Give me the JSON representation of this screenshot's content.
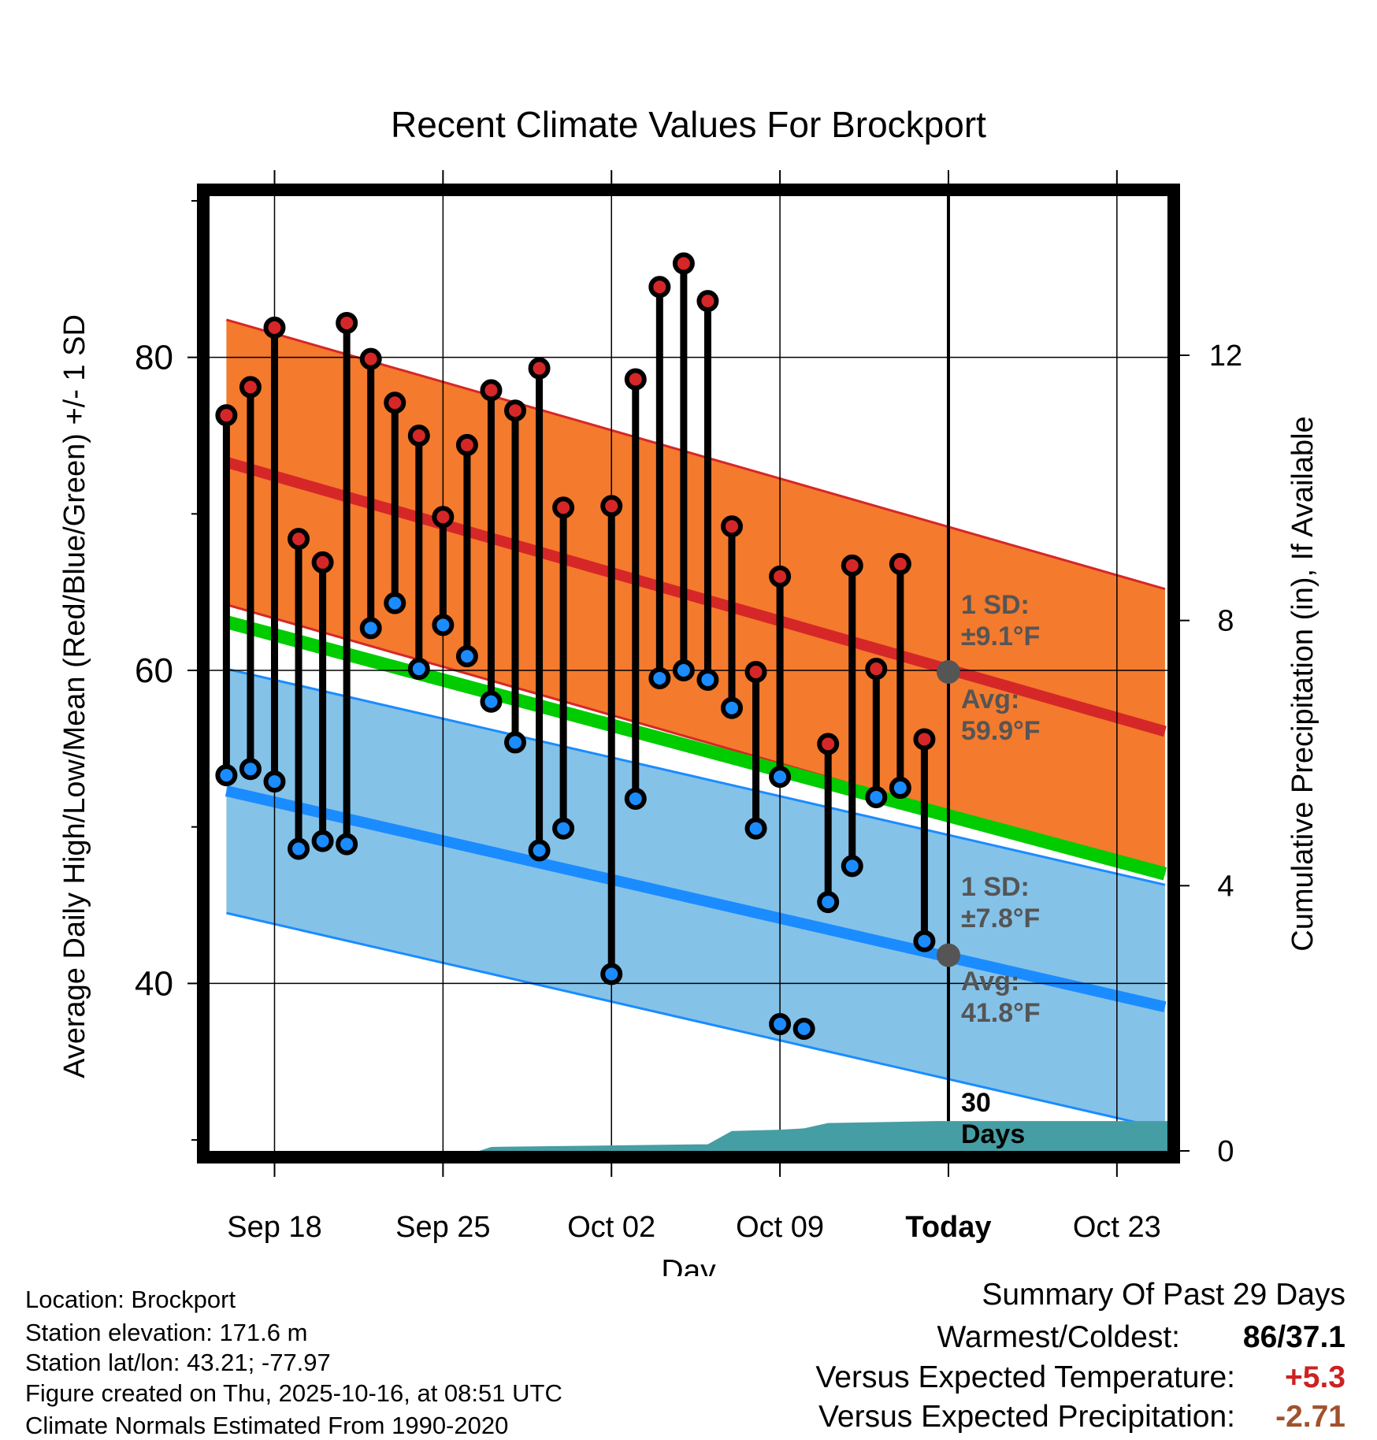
{
  "chart_data": {
    "type": "line",
    "title": "Recent Climate Values For Brockport",
    "xlabel": "Day",
    "ylabel": "Average Daily High/Low/Mean (Red/Blue/Green) +/- 1 SD",
    "y2label": "Cumulative Precipitation (in), If Available",
    "x_tick_labels": [
      "Sep 18",
      "Sep 25",
      "Oct 02",
      "Oct 09",
      "Today",
      "Oct 23"
    ],
    "x_tick_days": [
      2,
      9,
      16,
      23,
      30,
      37
    ],
    "xlim": [
      -0.7,
      39.1
    ],
    "ylim": [
      29.3,
      90.3
    ],
    "y_ticks": [
      40,
      60,
      80
    ],
    "y_minor_ticks": [
      30,
      50,
      70,
      90
    ],
    "y2lim": [
      0,
      14.4
    ],
    "y2_ticks": [
      0,
      4,
      8,
      12
    ],
    "grid": true,
    "normals": {
      "high_mean": [
        73.3,
        56.1
      ],
      "high_sd": 9.1,
      "low_mean": [
        52.3,
        38.5
      ],
      "low_sd": 7.8,
      "mean": [
        63.1,
        47.0
      ],
      "days": [
        0,
        39
      ]
    },
    "daily_high": [
      76.3,
      78.1,
      81.9,
      68.4,
      66.9,
      82.2,
      79.9,
      77.1,
      75.0,
      69.8,
      74.4,
      77.9,
      76.6,
      79.3,
      70.4,
      70.5,
      78.6,
      84.5,
      86.0,
      83.6,
      69.2,
      59.9,
      66.0,
      55.3,
      66.7,
      60.1,
      66.8,
      55.6
    ],
    "daily_low": [
      53.3,
      53.7,
      52.9,
      48.6,
      49.1,
      48.9,
      62.7,
      64.3,
      60.1,
      62.9,
      60.9,
      58.0,
      55.4,
      48.5,
      49.9,
      40.6,
      51.8,
      59.5,
      60.0,
      59.4,
      57.6,
      49.9,
      53.2,
      37.1,
      45.2,
      47.5,
      51.9,
      52.5,
      42.7
    ],
    "high_days": [
      0,
      1,
      2,
      3,
      4,
      5,
      6,
      7,
      8,
      9,
      10,
      11,
      12,
      13,
      14,
      16,
      17,
      18,
      19,
      20,
      21,
      22,
      23,
      25,
      26,
      27,
      28,
      29
    ],
    "low_days": [
      0,
      1,
      2,
      3,
      4,
      5,
      6,
      7,
      8,
      9,
      10,
      11,
      12,
      13,
      14,
      16,
      17,
      18,
      19,
      20,
      21,
      22,
      23,
      24,
      25,
      26,
      27,
      28,
      29
    ],
    "extra_low": [
      {
        "day": 23,
        "value": 37.4
      }
    ],
    "precip_cumulative": {
      "days": [
        0,
        10.5,
        11,
        20,
        21,
        23,
        24,
        25,
        29.5,
        38.1,
        39.1
      ],
      "values": [
        0,
        0,
        0.06,
        0.1,
        0.3,
        0.32,
        0.34,
        0.42,
        0.45,
        0.45,
        0.45
      ]
    },
    "annotations": {
      "high_sd_label": [
        "1 SD:",
        "±9.1°F"
      ],
      "high_avg_label": [
        "Avg:",
        "59.9°F"
      ],
      "low_sd_label": [
        "1 SD:",
        "±7.8°F"
      ],
      "low_avg_label": [
        "Avg:",
        "41.8°F"
      ],
      "period_label": [
        "30",
        "Days"
      ],
      "high_avg_value": 59.9,
      "low_avg_value": 41.8
    },
    "colors": {
      "high_band": "#f47a2d",
      "high_line": "#d62728",
      "low_band": "#85c2e8",
      "low_line": "#1a8cff",
      "mean_line": "#00cc00",
      "precip": "#459ea3",
      "high_marker": "#d62728",
      "low_marker": "#1a8cff",
      "annotation": "#555555"
    }
  },
  "info": {
    "location": "Location: Brockport",
    "elevation": "Station elevation: 171.6 m",
    "latlon": "Station lat/lon: 43.21; -77.97",
    "created": "Figure created on Thu, 2025-10-16, at 08:51 UTC",
    "normals": "Climate Normals Estimated From 1990-2020"
  },
  "summary": {
    "heading": "Summary Of Past 29 Days",
    "warm_cold_label": "Warmest/Coldest:",
    "warm_cold_value": "86/37.1",
    "temp_label": "Versus Expected Temperature:",
    "temp_value": "+5.3",
    "temp_color": "#cc2222",
    "precip_label": "Versus Expected Precipitation:",
    "precip_value": "-2.71",
    "precip_color": "#a0522d"
  }
}
